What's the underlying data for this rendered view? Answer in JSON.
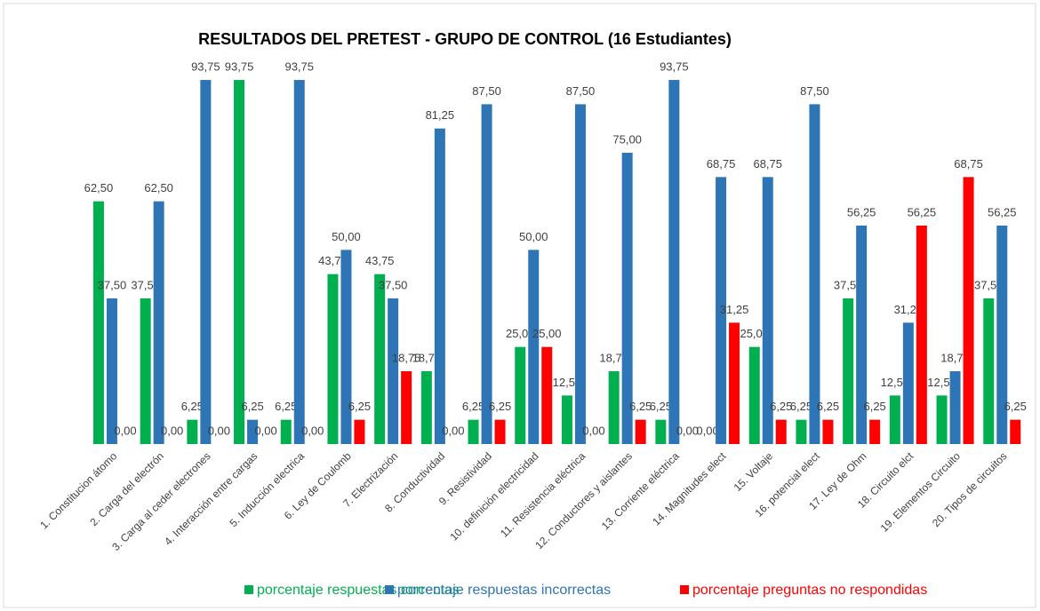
{
  "chart_data": {
    "type": "bar",
    "title": "RESULTADOS DEL PRETEST  -  GRUPO DE CONTROL (16 Estudiantes)",
    "categories": [
      "1. Constitucion átomo",
      "2. Carga del electrón",
      "3. Carga al ceder electrones",
      "4. Interacción entre cargas",
      "5. Inducción electrica",
      "6. Ley de Coulomb",
      "7. Electrización",
      "8. Conductividad",
      "9. Resistividad",
      "10. definición electricidad",
      "11. Resistencia eléctrica",
      "12. Conductores y aislantes",
      "13. Corriente eléctrica",
      "14. Magnitudes elect",
      "15. Voltaje",
      "16. potencial elect",
      "17. Ley de Ohm",
      "18. Circuito elct",
      "19. Elementos Circuito",
      "20. Tipos de circuitos"
    ],
    "series": [
      {
        "name": "porcentaje respuestas correctas",
        "color": "#00b050",
        "values": [
          62.5,
          37.5,
          6.25,
          93.75,
          6.25,
          43.75,
          43.75,
          18.75,
          6.25,
          25,
          12.5,
          18.75,
          6.25,
          0,
          25,
          6.25,
          37.5,
          12.5,
          12.5,
          37.5
        ],
        "value_labels": [
          "62,50",
          "37,50",
          "6,25",
          "93,75",
          "6,25",
          "43,75",
          "43,75",
          "18,75",
          "6,25",
          "25,00",
          "12,50",
          "18,75",
          "6,25",
          "0,00",
          "25,00",
          "6,25",
          "37,50",
          "12,50",
          "12,50",
          "37,50"
        ]
      },
      {
        "name": "porcentaje respuestas incorrectas",
        "color": "#2e75b6",
        "values": [
          37.5,
          62.5,
          93.75,
          6.25,
          93.75,
          50,
          37.5,
          81.25,
          87.5,
          50,
          87.5,
          75,
          93.75,
          68.75,
          68.75,
          87.5,
          56.25,
          31.25,
          18.75,
          56.25
        ],
        "value_labels": [
          "37,50",
          "62,50",
          "93,75",
          "6,25",
          "93,75",
          "50,00",
          "37,50",
          "81,25",
          "87,50",
          "50,00",
          "87,50",
          "75,00",
          "93,75",
          "68,75",
          "68,75",
          "87,50",
          "56,25",
          "31,25",
          "18,75",
          "56,25"
        ]
      },
      {
        "name": "porcentaje preguntas no respondidas",
        "color": "#ff0000",
        "values": [
          0,
          0,
          0,
          0,
          0,
          6.25,
          18.75,
          0,
          6.25,
          25,
          0,
          6.25,
          0,
          31.25,
          6.25,
          6.25,
          6.25,
          56.25,
          68.75,
          6.25
        ],
        "value_labels": [
          "0,00",
          "0,00",
          "0,00",
          "0,00",
          "0,00",
          "6,25",
          "18,75",
          "0,00",
          "6,25",
          "25,00",
          "0,00",
          "6,25",
          "0,00",
          "31,25",
          "6,25",
          "6,25",
          "6,25",
          "56,25",
          "68,75",
          "6,25"
        ]
      }
    ]
  }
}
